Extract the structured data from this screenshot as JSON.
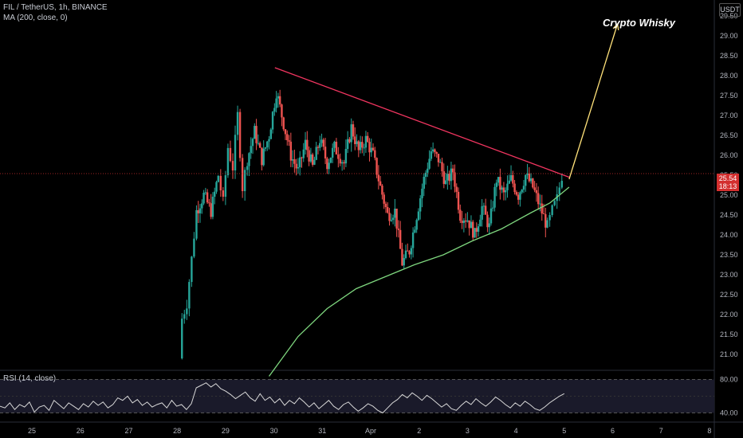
{
  "header": {
    "title": "FIL / TetherUS, 1h, BINANCE",
    "ma_label": "MA (200, close, 0)"
  },
  "currency_badge": "USDT",
  "watermark": "Crypto Whisky",
  "current_price": {
    "value": "25.54",
    "countdown": "18:13",
    "color": "#d32f2f"
  },
  "rsi": {
    "label": "RSI (14, close)",
    "upper": "80.00",
    "lower": "40.00",
    "line_color": "#d8d8d8"
  },
  "colors": {
    "up": "#26a69a",
    "down": "#ef5350",
    "trendline": "#f23560",
    "ma": "#7ed67e",
    "arrow": "#ffe27a"
  },
  "chart_data": {
    "type": "candlestick",
    "title": "FIL / TetherUS, 1h, BINANCE",
    "y_ticks": [
      "29.50",
      "29.00",
      "28.50",
      "28.00",
      "27.50",
      "27.00",
      "26.50",
      "26.00",
      "25.50",
      "25.00",
      "24.50",
      "24.00",
      "23.50",
      "23.00",
      "22.50",
      "22.00",
      "21.50",
      "21.00"
    ],
    "ylim": [
      20.6,
      29.9
    ],
    "x_ticks": [
      "25",
      "26",
      "27",
      "28",
      "29",
      "30",
      "31",
      "Apr",
      "2",
      "3",
      "4",
      "5",
      "6",
      "7",
      "8"
    ],
    "x_tick_positions": [
      0,
      1,
      2,
      3,
      4,
      5,
      6,
      7,
      8,
      9,
      10,
      11,
      12,
      13,
      14
    ],
    "xlim": [
      -0.66,
      14.1
    ],
    "price_path": [
      [
        3.05,
        20.9
      ],
      [
        3.1,
        21.9
      ],
      [
        3.2,
        22.3
      ],
      [
        3.3,
        23.4
      ],
      [
        3.4,
        24.6
      ],
      [
        3.55,
        25.0
      ],
      [
        3.7,
        24.6
      ],
      [
        3.85,
        25.5
      ],
      [
        3.95,
        24.8
      ],
      [
        4.05,
        26.2
      ],
      [
        4.15,
        25.7
      ],
      [
        4.25,
        27.0
      ],
      [
        4.35,
        25.2
      ],
      [
        4.45,
        25.9
      ],
      [
        4.6,
        26.6
      ],
      [
        4.75,
        25.9
      ],
      [
        4.9,
        26.5
      ],
      [
        5.05,
        27.6
      ],
      [
        5.2,
        26.8
      ],
      [
        5.35,
        26.0
      ],
      [
        5.5,
        25.6
      ],
      [
        5.65,
        26.3
      ],
      [
        5.8,
        25.7
      ],
      [
        5.95,
        26.4
      ],
      [
        6.1,
        25.8
      ],
      [
        6.25,
        26.2
      ],
      [
        6.45,
        25.8
      ],
      [
        6.6,
        26.7
      ],
      [
        6.75,
        26.1
      ],
      [
        6.9,
        26.4
      ],
      [
        7.05,
        26.0
      ],
      [
        7.2,
        25.2
      ],
      [
        7.35,
        24.5
      ],
      [
        7.5,
        24.6
      ],
      [
        7.65,
        23.3
      ],
      [
        7.8,
        23.6
      ],
      [
        7.95,
        24.5
      ],
      [
        8.1,
        25.4
      ],
      [
        8.25,
        26.1
      ],
      [
        8.4,
        25.9
      ],
      [
        8.55,
        25.3
      ],
      [
        8.7,
        25.6
      ],
      [
        8.85,
        24.5
      ],
      [
        9.0,
        24.4
      ],
      [
        9.15,
        24.0
      ],
      [
        9.3,
        24.7
      ],
      [
        9.45,
        24.2
      ],
      [
        9.6,
        25.4
      ],
      [
        9.75,
        25.0
      ],
      [
        9.9,
        25.4
      ],
      [
        10.05,
        25.0
      ],
      [
        10.2,
        25.5
      ],
      [
        10.35,
        25.2
      ],
      [
        10.5,
        24.7
      ],
      [
        10.65,
        24.2
      ],
      [
        10.75,
        24.6
      ],
      [
        10.85,
        24.9
      ],
      [
        10.95,
        25.5
      ]
    ],
    "trendline_resistance": [
      [
        5.02,
        28.2
      ],
      [
        11.1,
        25.45
      ]
    ],
    "moving_average_200": [
      [
        4.9,
        20.45
      ],
      [
        5.5,
        21.45
      ],
      [
        6.1,
        22.15
      ],
      [
        6.7,
        22.65
      ],
      [
        7.3,
        22.95
      ],
      [
        7.9,
        23.25
      ],
      [
        8.5,
        23.5
      ],
      [
        9.1,
        23.85
      ],
      [
        9.7,
        24.15
      ],
      [
        10.3,
        24.55
      ],
      [
        10.7,
        24.8
      ],
      [
        11.1,
        25.2
      ]
    ],
    "arrow": {
      "from": [
        11.1,
        25.4
      ],
      "to": [
        12.1,
        29.3
      ]
    },
    "last_price": 25.54,
    "rsi_series": [
      48,
      46,
      52,
      44,
      50,
      47,
      53,
      41,
      47,
      49,
      43,
      55,
      50,
      45,
      52,
      48,
      44,
      51,
      47,
      54,
      49,
      53,
      46,
      50,
      58,
      55,
      60,
      52,
      56,
      49,
      53,
      47,
      50,
      52,
      46,
      55,
      48,
      50,
      44,
      51,
      70,
      73,
      76,
      71,
      75,
      69,
      66,
      62,
      57,
      61,
      65,
      58,
      54,
      63,
      55,
      59,
      52,
      57,
      49,
      55,
      51,
      58,
      53,
      47,
      52,
      45,
      50,
      55,
      48,
      44,
      50,
      53,
      47,
      42,
      46,
      51,
      48,
      43,
      40,
      46,
      52,
      56,
      62,
      58,
      64,
      60,
      55,
      61,
      57,
      52,
      47,
      51,
      45,
      43,
      49,
      54,
      50,
      57,
      52,
      48,
      53,
      59,
      55,
      50,
      46,
      52,
      48,
      54,
      50,
      45,
      43,
      47,
      52,
      56,
      60,
      63
    ],
    "rsi_ylim": [
      29,
      91
    ]
  }
}
